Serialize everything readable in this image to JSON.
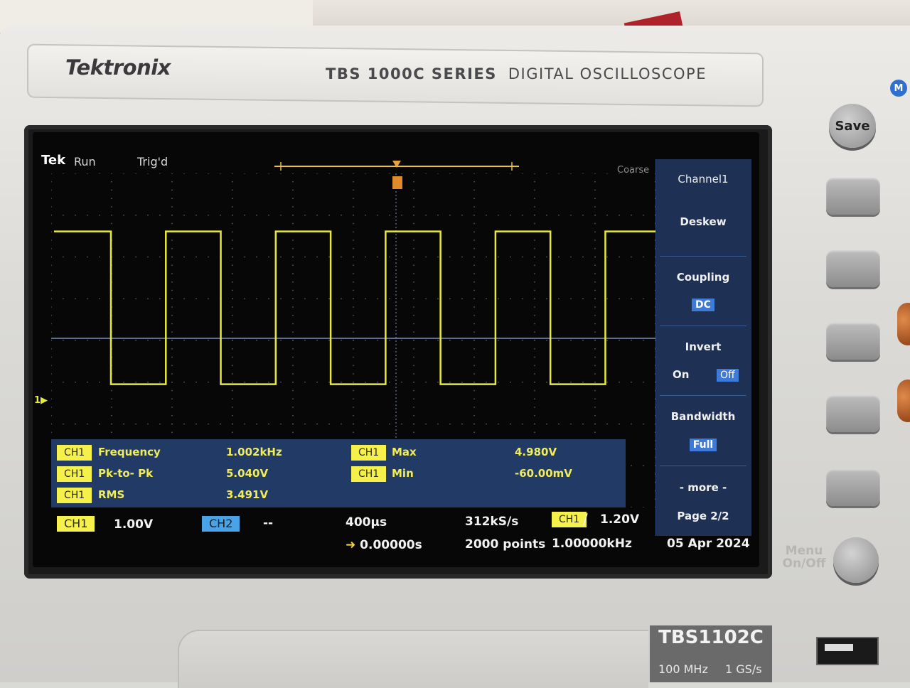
{
  "device": {
    "brand": "Tektronix",
    "series_bold": "TBS 1000C SERIES",
    "series_rest": "DIGITAL OSCILLOSCOPE",
    "model": "TBS1102C",
    "bandwidth_spec": "100 MHz",
    "sample_spec": "1 GS/s",
    "save_label": "Save",
    "menu_onoff_line1": "Menu",
    "menu_onoff_line2": "On/Off",
    "m_badge": "M"
  },
  "status_bar": {
    "logo": "Tek",
    "run_state": "Run",
    "trigger_state": "Trig'd",
    "adjust_mode": "Coarse"
  },
  "channel_marker": "1",
  "waveform": {
    "type": "square",
    "cycles_visible": 5.5,
    "frequency": "1.002kHz",
    "high_div": 3.2,
    "low_div": -1.0
  },
  "measurements": {
    "left": [
      {
        "source": "CH1",
        "name": "Frequency",
        "value": "1.002kHz"
      },
      {
        "source": "CH1",
        "name": "Pk-to- Pk",
        "value": "5.040V"
      },
      {
        "source": "CH1",
        "name": "RMS",
        "value": "3.491V"
      }
    ],
    "right": [
      {
        "source": "CH1",
        "name": "Max",
        "value": "4.980V"
      },
      {
        "source": "CH1",
        "name": "Min",
        "value": "-60.00mV"
      }
    ]
  },
  "side_menu": {
    "title": "Channel1",
    "deskew": "Deskew",
    "coupling_label": "Coupling",
    "coupling_value": "DC",
    "invert_label": "Invert",
    "invert_on": "On",
    "invert_off": "Off",
    "bandwidth_label": "Bandwidth",
    "bandwidth_value": "Full",
    "more": "- more -",
    "page": "Page 2/2"
  },
  "bottom": {
    "ch1_tag": "CH1",
    "ch1_scale": "1.00V",
    "ch2_tag": "CH2",
    "ch2_scale": "--",
    "timebase": "400µs",
    "position": "0.00000s",
    "sample_rate": "312kS/s",
    "record_length": "2000 points",
    "trigger_source": "CH1",
    "trigger_level": "1.20V",
    "trigger_freq": "1.00000kHz",
    "date": "05 Apr 2024"
  },
  "colors": {
    "trace": "#e9e93a",
    "menu_bg": "#1e3154",
    "meas_bg": "#223a66",
    "selected": "#3e7bd8",
    "ch2": "#4aa3e6"
  }
}
